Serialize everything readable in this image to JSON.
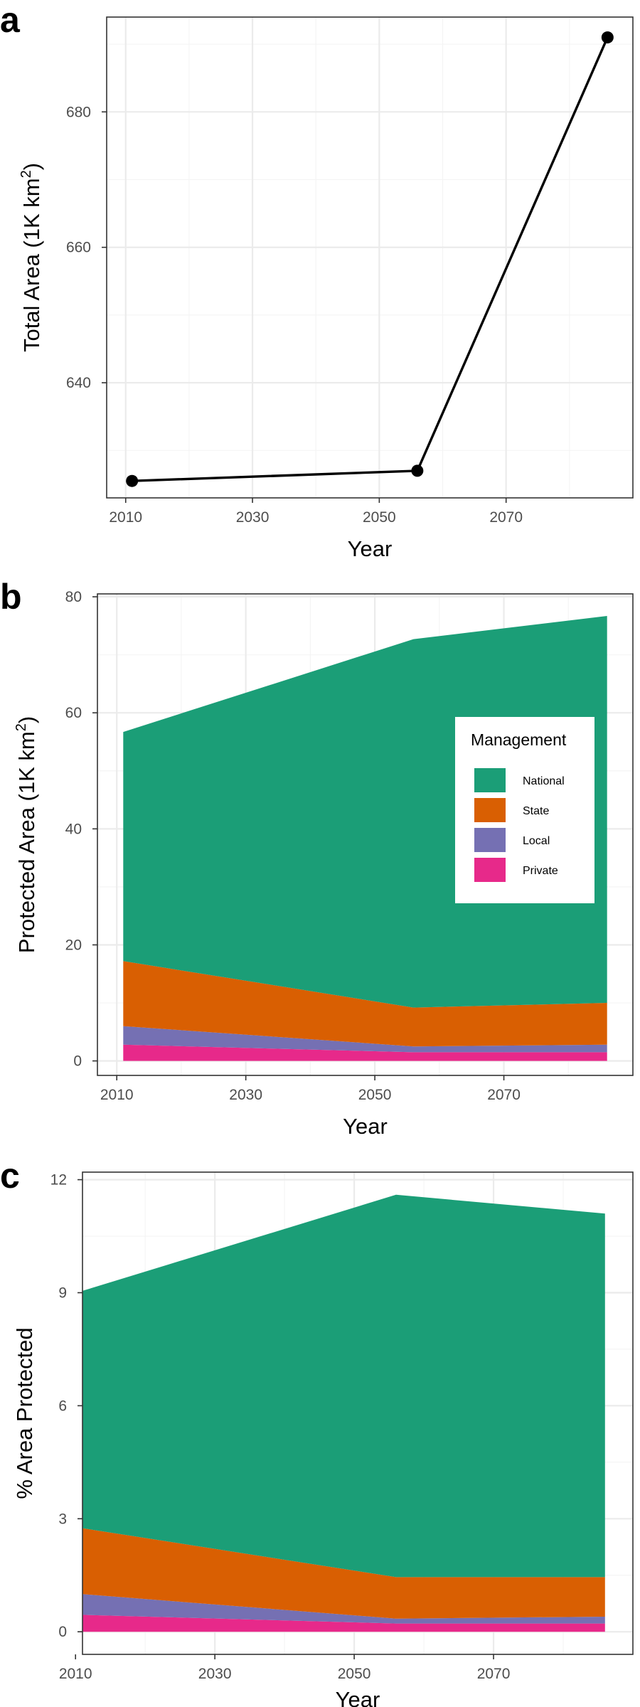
{
  "chart_data": [
    {
      "panel_label": "a",
      "type": "line",
      "x": [
        2011,
        2056,
        2086
      ],
      "series": [
        {
          "values": [
            625.5,
            627,
            691
          ],
          "color": "#000000",
          "markers": true
        }
      ],
      "xlabel": "Year",
      "ylabel": "Total Area (1K km",
      "ylabel_superscript": "2",
      "ylabel_suffix": ")",
      "xlim": [
        2007,
        2090
      ],
      "ylim": [
        623,
        694
      ],
      "xticks": [
        2010,
        2030,
        2050,
        2070
      ],
      "yticks": [
        640,
        660,
        680
      ],
      "grid": true,
      "legend": "none"
    },
    {
      "panel_label": "b",
      "type": "area",
      "stacked": true,
      "x": [
        2011,
        2056,
        2086
      ],
      "series": [
        {
          "name": "Private",
          "values": [
            2.8,
            1.5,
            1.5
          ],
          "color": "#e7298a"
        },
        {
          "name": "Local",
          "values": [
            3.2,
            1.0,
            1.3
          ],
          "color": "#7570b3"
        },
        {
          "name": "State",
          "values": [
            11.2,
            6.7,
            7.2
          ],
          "color": "#d95f02"
        },
        {
          "name": "National",
          "values": [
            39.5,
            63.5,
            66.7
          ],
          "color": "#1b9e77"
        }
      ],
      "xlabel": "Year",
      "ylabel": "Protected Area (1K km",
      "ylabel_superscript": "2",
      "ylabel_suffix": ")",
      "xlim": [
        2007,
        2090
      ],
      "ylim": [
        -2.5,
        80.5
      ],
      "xticks": [
        2010,
        2030,
        2050,
        2070
      ],
      "yticks": [
        0,
        20,
        40,
        60,
        80
      ],
      "grid": true,
      "legend": "right",
      "legend_title": "Management",
      "legend_order": [
        "National",
        "State",
        "Local",
        "Private"
      ]
    },
    {
      "panel_label": "c",
      "type": "area",
      "stacked": true,
      "x": [
        2011,
        2056,
        2086
      ],
      "series": [
        {
          "name": "Private",
          "values": [
            0.45,
            0.22,
            0.22
          ],
          "color": "#e7298a"
        },
        {
          "name": "Local",
          "values": [
            0.55,
            0.13,
            0.18
          ],
          "color": "#7570b3"
        },
        {
          "name": "State",
          "values": [
            1.75,
            1.1,
            1.05
          ],
          "color": "#d95f02"
        },
        {
          "name": "National",
          "values": [
            6.3,
            10.15,
            9.65
          ],
          "color": "#1b9e77"
        }
      ],
      "xlabel": "Year",
      "ylabel": "% Area Protected",
      "xlim": [
        2011,
        2090
      ],
      "ylim": [
        -0.6,
        12.2
      ],
      "xticks": [
        2010,
        2030,
        2050,
        2070
      ],
      "yticks": [
        0,
        3,
        6,
        9,
        12
      ],
      "grid": true,
      "legend": "none"
    }
  ]
}
